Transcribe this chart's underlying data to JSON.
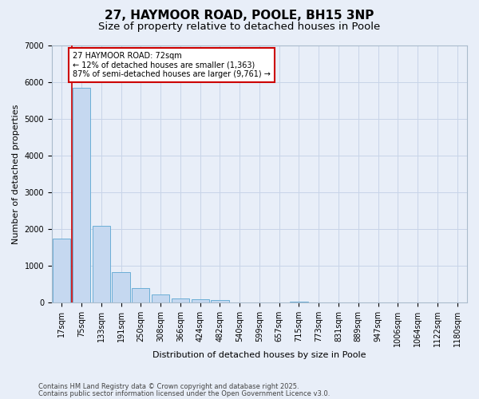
{
  "title1": "27, HAYMOOR ROAD, POOLE, BH15 3NP",
  "title2": "Size of property relative to detached houses in Poole",
  "xlabel": "Distribution of detached houses by size in Poole",
  "ylabel": "Number of detached properties",
  "bar_categories": [
    "17sqm",
    "75sqm",
    "133sqm",
    "191sqm",
    "250sqm",
    "308sqm",
    "366sqm",
    "424sqm",
    "482sqm",
    "540sqm",
    "599sqm",
    "657sqm",
    "715sqm",
    "773sqm",
    "831sqm",
    "889sqm",
    "947sqm",
    "1006sqm",
    "1064sqm",
    "1122sqm",
    "1180sqm"
  ],
  "bar_values": [
    1750,
    5850,
    2080,
    830,
    400,
    220,
    120,
    95,
    60,
    0,
    0,
    0,
    30,
    0,
    0,
    0,
    0,
    0,
    0,
    0,
    0
  ],
  "bar_color": "#c5d8f0",
  "bar_edge_color": "#6baed6",
  "vline_x": 0.5,
  "vline_color": "#cc0000",
  "ylim": [
    0,
    7000
  ],
  "annotation_text": "27 HAYMOOR ROAD: 72sqm\n← 12% of detached houses are smaller (1,363)\n87% of semi-detached houses are larger (9,761) →",
  "annotation_box_color": "#ffffff",
  "annotation_box_edge": "#cc0000",
  "footnote1": "Contains HM Land Registry data © Crown copyright and database right 2025.",
  "footnote2": "Contains public sector information licensed under the Open Government Licence v3.0.",
  "bg_color": "#e8eef8",
  "grid_color": "#c8d4e8",
  "title_fontsize": 11,
  "subtitle_fontsize": 9.5,
  "axis_fontsize": 8,
  "tick_fontsize": 7,
  "annot_fontsize": 7,
  "footnote_fontsize": 6
}
